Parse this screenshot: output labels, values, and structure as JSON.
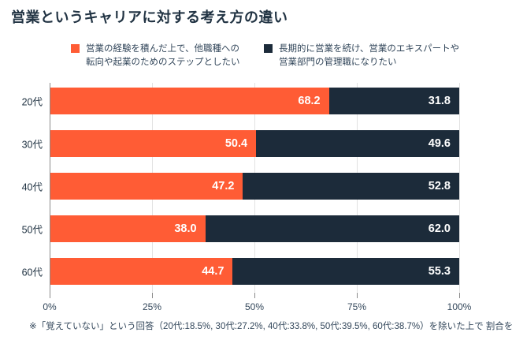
{
  "title": "営業というキャリアに対する考え方の違い",
  "legend": [
    {
      "name": "step-to-other-career",
      "line1": "営業の経験を積んだ上で、他職種への",
      "line2": "転向や起業のためのステップとしたい",
      "color": "#ff5c35"
    },
    {
      "name": "long-term-sales",
      "line1": "長期的に営業を続け、営業のエキスパートや",
      "line2": "営業部門の管理職になりたい",
      "color": "#1c2b3a"
    }
  ],
  "chart_data": {
    "type": "bar",
    "orientation": "horizontal",
    "stacked": true,
    "title": "営業というキャリアに対する考え方の違い",
    "categories": [
      "20代",
      "30代",
      "40代",
      "50代",
      "60代"
    ],
    "series": [
      {
        "name": "営業の経験を積んだ上で、他職種への転向や起業のためのステップとしたい",
        "color": "#ff5c35",
        "values": [
          68.2,
          50.4,
          47.2,
          38.0,
          44.7
        ]
      },
      {
        "name": "長期的に営業を続け、営業のエキスパートや営業部門の管理職になりたい",
        "color": "#1c2b3a",
        "values": [
          31.8,
          49.6,
          52.8,
          62.0,
          55.3
        ]
      }
    ],
    "xlabel": "",
    "ylabel": "",
    "xlim": [
      0,
      100
    ],
    "xticks": [
      {
        "label": "0%",
        "pct": 0
      },
      {
        "label": "25%",
        "pct": 25
      },
      {
        "label": "50%",
        "pct": 50
      },
      {
        "label": "75%",
        "pct": 75
      },
      {
        "label": "100%",
        "pct": 100
      }
    ],
    "gridlines_pct": [
      25,
      50,
      75,
      100
    ],
    "grid": true,
    "legend_position": "top",
    "value_labels": true,
    "value_label_format": "one-decimal"
  },
  "footnote": "※「覚えていない」という回答（20代:18.5%, 30代:27.2%, 40代:33.8%, 50代:39.5%, 60代:38.7%）を除いた上で 割合を算出"
}
